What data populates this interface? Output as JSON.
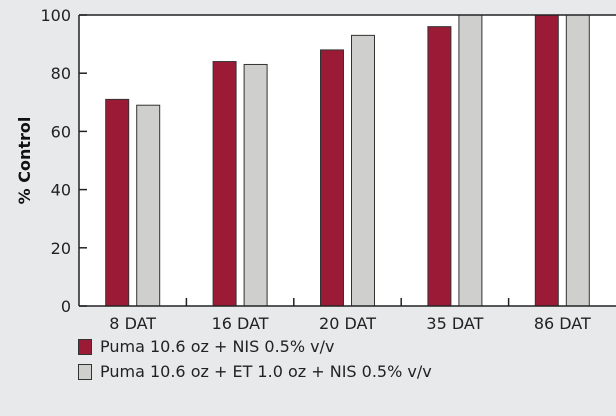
{
  "chart_data": {
    "type": "bar",
    "categories": [
      "8 DAT",
      "16 DAT",
      "20 DAT",
      "35 DAT",
      "86 DAT"
    ],
    "series": [
      {
        "name": "Puma 10.6 oz + NIS 0.5% v/v",
        "values": [
          71,
          84,
          88,
          96,
          100
        ],
        "color": "#9b1b36"
      },
      {
        "name": "Puma 10.6 oz + ET 1.0 oz + NIS 0.5% v/v",
        "values": [
          69,
          83,
          93,
          100,
          100
        ],
        "color": "#cfcfce"
      }
    ],
    "title": "",
    "xlabel": "",
    "ylabel": "% Control",
    "ylim": [
      0,
      100
    ],
    "yticks": [
      0,
      20,
      40,
      60,
      80,
      100
    ],
    "legend_position": "bottom-left",
    "grid": false
  }
}
